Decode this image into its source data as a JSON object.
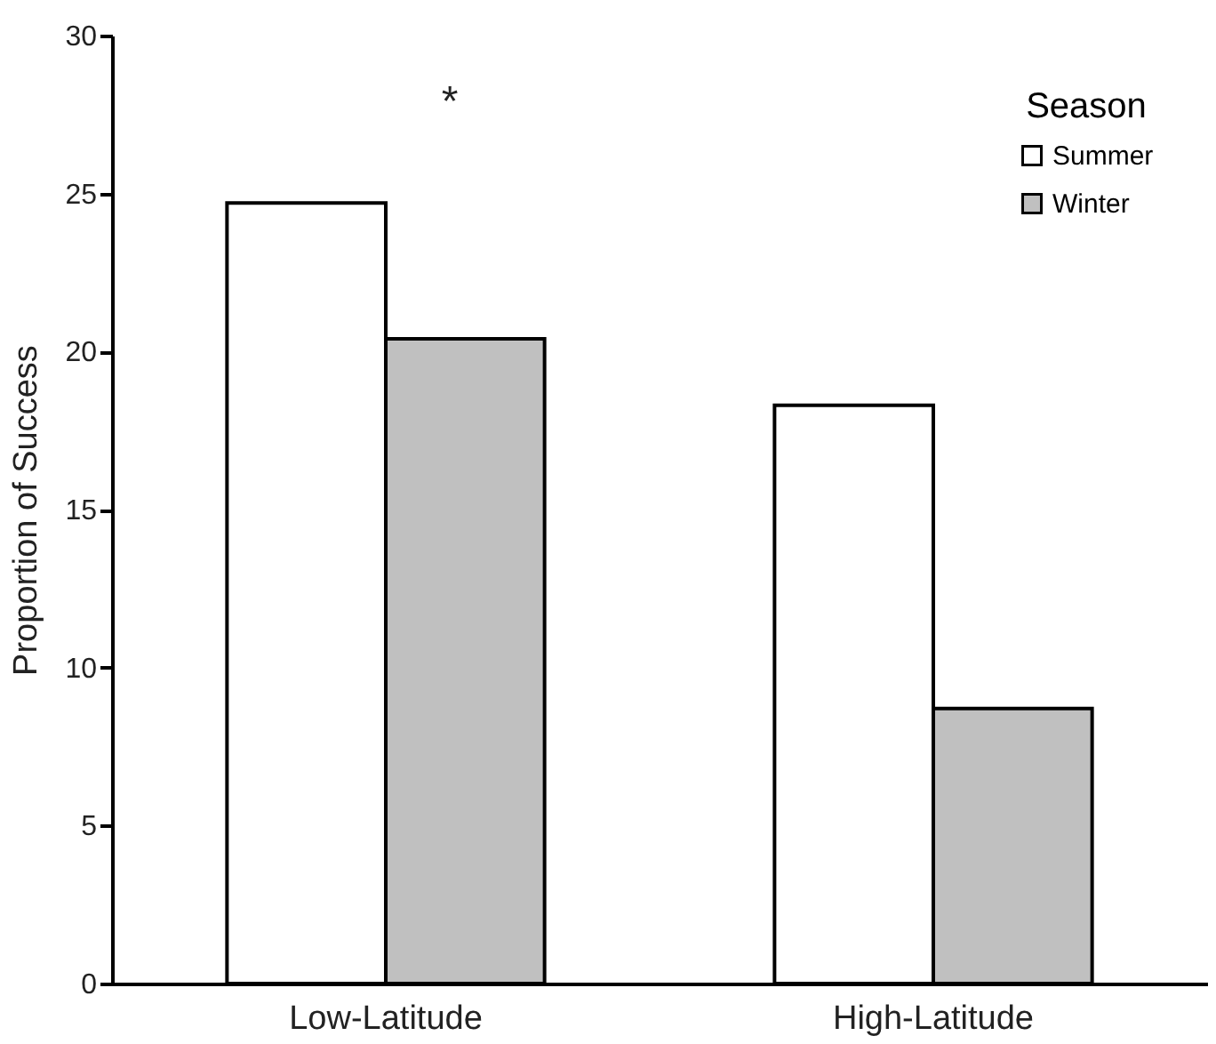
{
  "chart_data": {
    "type": "bar",
    "ylabel": "Proportion of Success",
    "legend_title": "Season",
    "categories": [
      "Low-Latitude",
      "High-Latitude"
    ],
    "series": [
      {
        "name": "Summer",
        "color": "#ffffff",
        "values": [
          24.7,
          18.3
        ]
      },
      {
        "name": "Winter",
        "color": "#c0c0c0",
        "values": [
          20.4,
          8.7
        ]
      }
    ],
    "ylim": [
      0,
      30
    ],
    "yticks": [
      0,
      5,
      10,
      15,
      20,
      25,
      30
    ],
    "grid": false,
    "legend": "top right",
    "annotations": [
      "*"
    ]
  }
}
